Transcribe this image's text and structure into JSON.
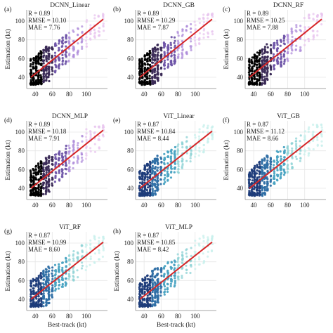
{
  "figure": {
    "shared_xlabel": "Best-track (kt)",
    "shared_ylabel": "Estimation (kt)",
    "colors": {
      "grid": "#e6e6e6",
      "fit_line": "#d62728",
      "dcnn": [
        "#000000",
        "#3a2a56",
        "#6f55a8",
        "#b08fdb",
        "#e8c6ef"
      ],
      "vit": [
        "#1e3c7a",
        "#2f6fa5",
        "#4aa3c2",
        "#8fd3d6",
        "#c8f0ec"
      ]
    }
  },
  "chart_data": [
    {
      "panel": "(a)",
      "title": "DCNN_Linear",
      "type": "scatter",
      "stats": {
        "r": "R = 0.89",
        "rmse": "RMSE = 10.10",
        "mae": "MAE = 7.76"
      },
      "xlabel": "",
      "ylabel": "Estimation (kt)",
      "xticks": [
        "40",
        "60",
        "80",
        "100"
      ],
      "yticks": [
        "40",
        "60",
        "80",
        "100"
      ],
      "xlim": [
        30,
        125
      ],
      "ylim": [
        28,
        112
      ],
      "grid": true,
      "palette": "dcnn",
      "fit_line": {
        "x": [
          35,
          120
        ],
        "y": [
          40,
          102
        ]
      }
    },
    {
      "panel": "(b)",
      "title": "DCNN_GB",
      "type": "scatter",
      "stats": {
        "r": "R = 0.89",
        "rmse": "RMSE = 10.29",
        "mae": "MAE = 7.87"
      },
      "xlabel": "",
      "ylabel": "",
      "xticks": [
        "40",
        "60",
        "80",
        "100"
      ],
      "yticks": [
        "40",
        "60",
        "80",
        "100"
      ],
      "xlim": [
        30,
        125
      ],
      "ylim": [
        28,
        112
      ],
      "grid": true,
      "palette": "dcnn",
      "fit_line": {
        "x": [
          35,
          120
        ],
        "y": [
          40,
          102
        ]
      }
    },
    {
      "panel": "(c)",
      "title": "DCNN_RF",
      "type": "scatter",
      "stats": {
        "r": "R = 0.89",
        "rmse": "RMSE = 10.25",
        "mae": "MAE = 7.88"
      },
      "xlabel": "",
      "ylabel": "Estimation (kt)",
      "xticks": [
        "40",
        "60",
        "80",
        "100"
      ],
      "yticks": [
        "40",
        "60",
        "80",
        "100"
      ],
      "xlim": [
        30,
        125
      ],
      "ylim": [
        28,
        112
      ],
      "grid": true,
      "palette": "dcnn",
      "fit_line": {
        "x": [
          35,
          120
        ],
        "y": [
          40,
          102
        ]
      }
    },
    {
      "panel": "(d)",
      "title": "DCNN_MLP",
      "type": "scatter",
      "stats": {
        "r": "R = 0.89",
        "rmse": "RMSE = 10.18",
        "mae": "MAE = 7.91"
      },
      "xlabel": "",
      "ylabel": "Estimation (kt)",
      "xticks": [
        "40",
        "60",
        "80",
        "100"
      ],
      "yticks": [
        "40",
        "60",
        "80",
        "100"
      ],
      "xlim": [
        30,
        125
      ],
      "ylim": [
        28,
        112
      ],
      "grid": true,
      "palette": "dcnn",
      "fit_line": {
        "x": [
          35,
          120
        ],
        "y": [
          40,
          102
        ]
      }
    },
    {
      "panel": "(e)",
      "title": "ViT_Linear",
      "type": "scatter",
      "stats": {
        "r": "R = 0.87",
        "rmse": "RMSE = 10.84",
        "mae": "MAE = 8.44"
      },
      "xlabel": "",
      "ylabel": "",
      "xticks": [
        "40",
        "60",
        "80",
        "100"
      ],
      "yticks": [
        "40",
        "60",
        "80",
        "100"
      ],
      "xlim": [
        30,
        125
      ],
      "ylim": [
        28,
        112
      ],
      "grid": true,
      "palette": "vit",
      "fit_line": {
        "x": [
          35,
          120
        ],
        "y": [
          40,
          101
        ]
      }
    },
    {
      "panel": "(f)",
      "title": "ViT_GB",
      "type": "scatter",
      "stats": {
        "r": "R = 0.87",
        "rmse": "RMSE = 11.12",
        "mae": "MAE = 8.66"
      },
      "xlabel": "",
      "ylabel": "Estimation (kt)",
      "xticks": [
        "40",
        "60",
        "80",
        "100"
      ],
      "yticks": [
        "40",
        "60",
        "80",
        "100"
      ],
      "xlim": [
        30,
        125
      ],
      "ylim": [
        28,
        112
      ],
      "grid": true,
      "palette": "vit",
      "fit_line": {
        "x": [
          35,
          120
        ],
        "y": [
          40,
          101
        ]
      }
    },
    {
      "panel": "(g)",
      "title": "ViT_RF",
      "type": "scatter",
      "stats": {
        "r": "R = 0.87",
        "rmse": "RMSE = 10.99",
        "mae": "MAE = 8.60"
      },
      "xlabel": "Best-track (kt)",
      "ylabel": "Estimation (kt)",
      "xticks": [
        "40",
        "60",
        "80",
        "100"
      ],
      "yticks": [
        "40",
        "60",
        "80",
        "100"
      ],
      "xlim": [
        30,
        125
      ],
      "ylim": [
        28,
        112
      ],
      "grid": true,
      "palette": "vit",
      "fit_line": {
        "x": [
          35,
          120
        ],
        "y": [
          40,
          101
        ]
      }
    },
    {
      "panel": "(h)",
      "title": "ViT_MLP",
      "type": "scatter",
      "stats": {
        "r": "R = 0.87",
        "rmse": "RMSE = 10.85",
        "mae": "MAE = 8.42"
      },
      "xlabel": "Best-track (kt)",
      "ylabel": "Estimation (kt)",
      "xticks": [
        "40",
        "60",
        "80",
        "100"
      ],
      "yticks": [
        "40",
        "60",
        "80",
        "100"
      ],
      "xlim": [
        30,
        125
      ],
      "ylim": [
        28,
        112
      ],
      "grid": true,
      "palette": "vit",
      "fit_line": {
        "x": [
          35,
          120
        ],
        "y": [
          40,
          101
        ]
      }
    }
  ]
}
